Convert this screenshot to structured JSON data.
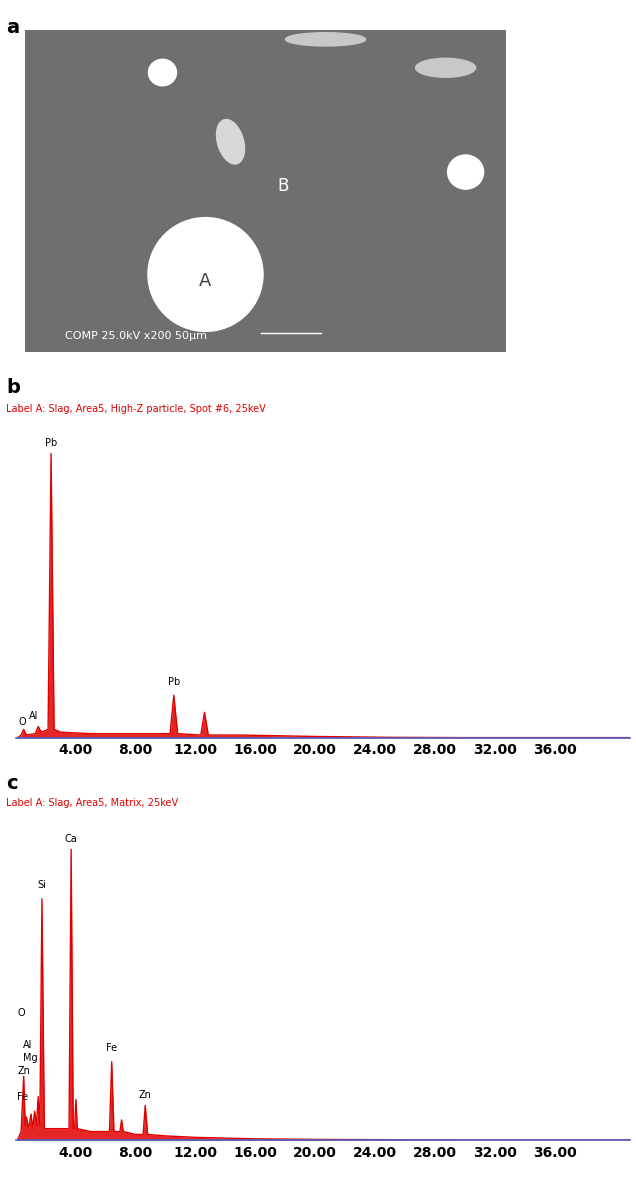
{
  "chart_data": [
    {
      "type": "image",
      "title": "a",
      "annotations": [
        {
          "text": "A"
        },
        {
          "text": "B"
        },
        {
          "text": "COMP 25.0kV x200 50μm"
        }
      ]
    },
    {
      "type": "line",
      "title": "b",
      "subtitle": "Label A: Slag, Area5, High-Z particle, Spot #6, 25keV",
      "color": "#e00000",
      "tick_labels": "x",
      "x": [
        0.1,
        0.35,
        0.52,
        0.7,
        1.3,
        1.49,
        1.7,
        2.15,
        2.35,
        2.55,
        3.0,
        5,
        8,
        10.3,
        10.55,
        10.8,
        12.35,
        12.6,
        12.85,
        15,
        20,
        25,
        30,
        41
      ],
      "values": [
        0,
        1,
        3,
        1,
        1.5,
        4,
        2,
        3,
        100,
        3,
        2,
        1.5,
        1.5,
        1.5,
        15,
        1.5,
        1,
        9,
        1,
        1,
        0.5,
        0.2,
        0.1,
        0.1
      ],
      "xlim": [
        0,
        41
      ],
      "ylim": [
        0,
        110
      ],
      "xticks": [
        {
          "value": 4,
          "label": "4.00"
        },
        {
          "value": 8,
          "label": "8.00"
        },
        {
          "value": 12,
          "label": "12.00"
        },
        {
          "value": 16,
          "label": "16.00"
        },
        {
          "value": 20,
          "label": "20.00"
        },
        {
          "value": 24,
          "label": "24.00"
        },
        {
          "value": 28,
          "label": "28.00"
        },
        {
          "value": 32,
          "label": "32.00"
        },
        {
          "value": 36,
          "label": "36.00"
        }
      ],
      "annotations": [
        {
          "text": "O",
          "x": 0.2,
          "y": 4
        },
        {
          "text": "Al",
          "x": 1.2,
          "y": 6
        },
        {
          "text": "Pb",
          "x": 2.35,
          "y": 102
        },
        {
          "text": "Pb",
          "x": 10.55,
          "y": 18
        }
      ]
    },
    {
      "type": "line",
      "title": "c",
      "subtitle": "Label A: Slag, Area5, Matrix, 25keV",
      "color": "#e00000",
      "tick_labels": "x",
      "x": [
        0.1,
        0.35,
        0.52,
        0.62,
        0.7,
        0.85,
        1.01,
        1.12,
        1.25,
        1.37,
        1.49,
        1.6,
        1.74,
        1.9,
        2.3,
        3.0,
        3.55,
        3.69,
        3.83,
        3.92,
        4.01,
        4.1,
        5.0,
        6.25,
        6.4,
        6.55,
        6.95,
        7.06,
        7.17,
        8.0,
        8.5,
        8.64,
        8.8,
        10,
        12,
        16,
        20,
        30,
        41
      ],
      "values": [
        0,
        3,
        22,
        5,
        8,
        4,
        9,
        4,
        10,
        5,
        15,
        5,
        83,
        4,
        4,
        4,
        4,
        100,
        4,
        4,
        14,
        4,
        3,
        3,
        27,
        3,
        3,
        7,
        3,
        2,
        2,
        12,
        2,
        1.5,
        1,
        0.5,
        0.3,
        0.1,
        0.1
      ],
      "xlim": [
        0,
        41
      ],
      "ylim": [
        0,
        110
      ],
      "xticks": [
        {
          "value": 4,
          "label": "4.00"
        },
        {
          "value": 8,
          "label": "8.00"
        },
        {
          "value": 12,
          "label": "12.00"
        },
        {
          "value": 16,
          "label": "16.00"
        },
        {
          "value": 20,
          "label": "20.00"
        },
        {
          "value": 24,
          "label": "24.00"
        },
        {
          "value": 28,
          "label": "28.00"
        },
        {
          "value": 32,
          "label": "32.00"
        },
        {
          "value": 36,
          "label": "36.00"
        }
      ],
      "annotations": [
        {
          "text": "Ca",
          "x": 3.69,
          "y": 102
        },
        {
          "text": "Si",
          "x": 1.74,
          "y": 86
        },
        {
          "text": "O",
          "x": 0.1,
          "y": 42
        },
        {
          "text": "Al",
          "x": 0.5,
          "y": 31
        },
        {
          "text": "Mg",
          "x": 0.5,
          "y": 26.5
        },
        {
          "text": "Zn",
          "x": 0.1,
          "y": 22
        },
        {
          "text": "Fe",
          "x": 0.1,
          "y": 13
        },
        {
          "text": "Fe",
          "x": 6.4,
          "y": 30
        },
        {
          "text": "Zn",
          "x": 8.64,
          "y": 14
        }
      ]
    }
  ]
}
